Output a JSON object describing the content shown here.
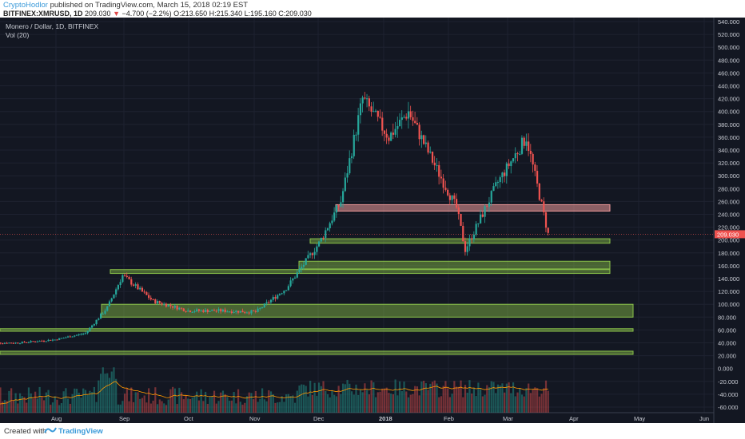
{
  "header": {
    "author": "CryptoHodlor",
    "published": "published on TradingView.com, March 15, 2018 02:19 EST",
    "symbol": "BITFINEX:XMRUSD, 1D",
    "last": "209.030",
    "change": "−4.700 (−2.2%)",
    "ohlc": "O:213.650 H:215.340 L:195.160 C:209.030"
  },
  "legend": {
    "title": "Monero / Dollar, 1D, BITFINEX",
    "vol": "Vol (20)"
  },
  "yaxis": {
    "labels": [
      "540.000",
      "520.000",
      "500.000",
      "480.000",
      "460.000",
      "440.000",
      "420.000",
      "400.000",
      "380.000",
      "360.000",
      "340.000",
      "320.000",
      "300.000",
      "280.000",
      "260.000",
      "240.000",
      "220.000",
      "200.000",
      "180.000",
      "160.000",
      "140.000",
      "120.000",
      "100.000",
      "80.000",
      "60.000",
      "40.000",
      "20.000",
      "0.000",
      "-20.000",
      "-40.000",
      "-60.000"
    ],
    "current": "209.030"
  },
  "xaxis": {
    "labels": [
      "Aug",
      "Sep",
      "Oct",
      "Nov",
      "Dec",
      "2018",
      "Feb",
      "Mar",
      "Apr",
      "May",
      "Jun"
    ]
  },
  "footer": {
    "created": "Created with",
    "brand": "TradingView"
  },
  "colors": {
    "up": "#26a69a",
    "down": "#ef5350",
    "zone_support": "#8bc34a",
    "zone_resistance": "#ef9a9a",
    "background": "#131722"
  },
  "chart_data": {
    "type": "candlestick",
    "title": "Monero / Dollar, 1D, BITFINEX",
    "ylim": [
      -70,
      545
    ],
    "x_start_month": "Jul 2017",
    "close_approx": [
      {
        "date": "2017-07-15",
        "close": 40
      },
      {
        "date": "2017-08-01",
        "close": 45
      },
      {
        "date": "2017-08-15",
        "close": 55
      },
      {
        "date": "2017-08-25",
        "close": 95
      },
      {
        "date": "2017-09-01",
        "close": 145
      },
      {
        "date": "2017-09-15",
        "close": 105
      },
      {
        "date": "2017-10-01",
        "close": 90
      },
      {
        "date": "2017-10-15",
        "close": 90
      },
      {
        "date": "2017-11-01",
        "close": 88
      },
      {
        "date": "2017-11-15",
        "close": 125
      },
      {
        "date": "2017-11-30",
        "close": 195
      },
      {
        "date": "2017-12-10",
        "close": 260
      },
      {
        "date": "2017-12-20",
        "close": 420
      },
      {
        "date": "2018-01-01",
        "close": 360
      },
      {
        "date": "2018-01-10",
        "close": 400
      },
      {
        "date": "2018-01-20",
        "close": 330
      },
      {
        "date": "2018-02-01",
        "close": 250
      },
      {
        "date": "2018-02-05",
        "close": 185
      },
      {
        "date": "2018-02-20",
        "close": 290
      },
      {
        "date": "2018-03-05",
        "close": 360
      },
      {
        "date": "2018-03-15",
        "close": 209
      }
    ],
    "zones": [
      {
        "type": "resistance",
        "low": 245,
        "high": 255
      },
      {
        "type": "support",
        "low": 195,
        "high": 202
      },
      {
        "type": "support",
        "low": 155,
        "high": 167
      },
      {
        "type": "support",
        "low": 148,
        "high": 154
      },
      {
        "type": "support",
        "low": 80,
        "high": 100
      },
      {
        "type": "support",
        "low": 58,
        "high": 62
      },
      {
        "type": "support",
        "low": 22,
        "high": 27
      }
    ],
    "current_price": 209.03
  }
}
